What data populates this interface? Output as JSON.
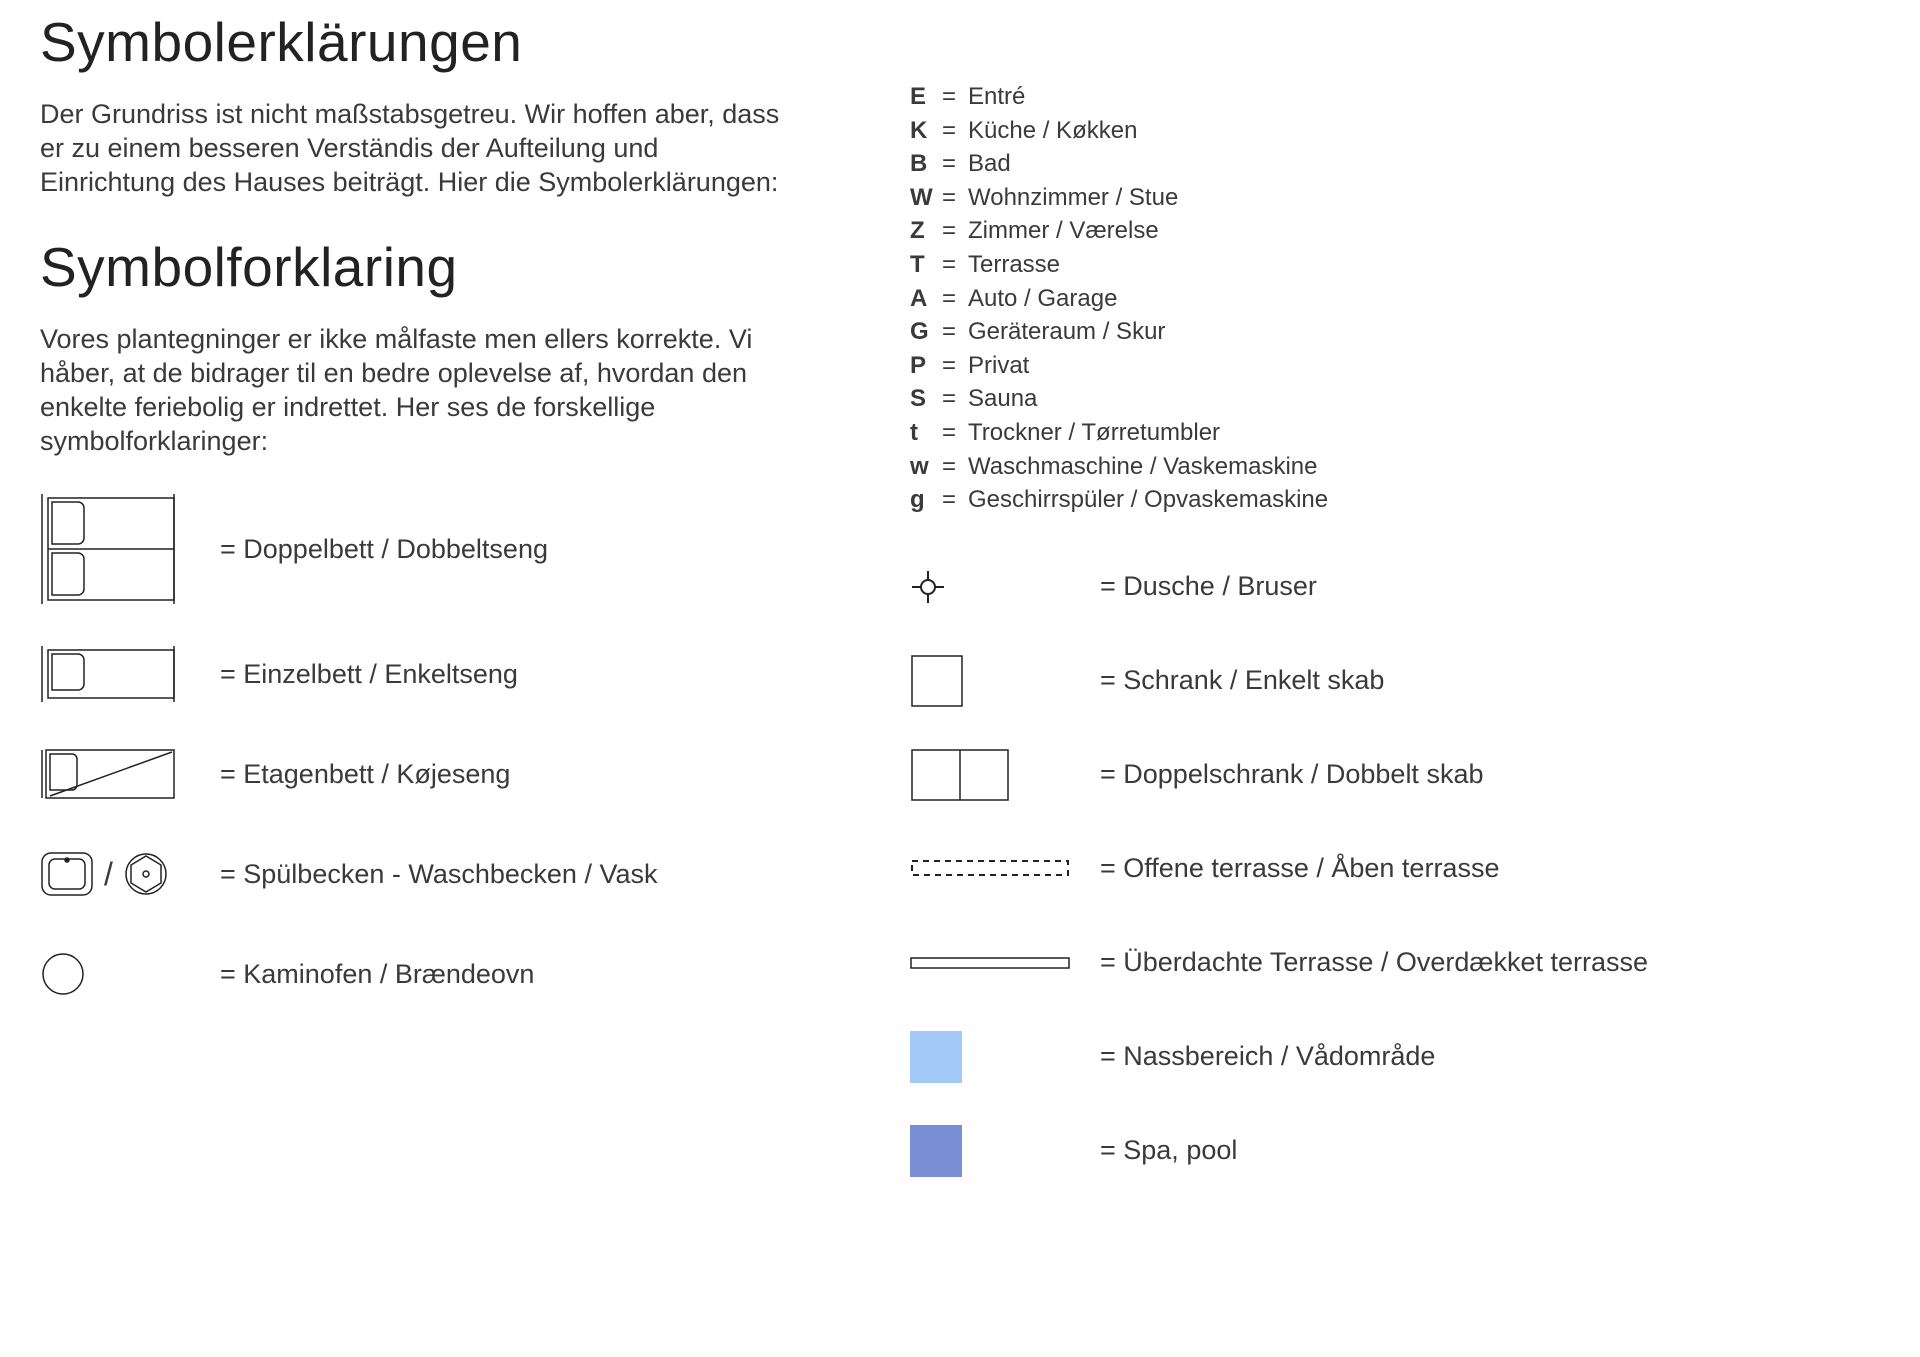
{
  "titles": {
    "de": "Symbolerklärungen",
    "da": "Symbolforklaring"
  },
  "subtitles": {
    "de": "Der Grundriss ist nicht maßstabsgetreu. Wir hoffen aber, dass er zu einem besseren Verständis der Aufteilung und Einrichtung des Hauses beiträgt. Hier die Symbolerklärungen:",
    "da": "Vores plantegninger er ikke målfaste men ellers korrekte. Vi håber, at de bidrager til en bedre oplevelse af, hvordan den enkelte feriebolig er indrettet. Her ses de forskellige symbolforklaringer:"
  },
  "left_items": {
    "double_bed": "= Doppelbett / Dobbeltseng",
    "single_bed": "= Einzelbett / Enkeltseng",
    "bunk_bed": "= Etagenbett / Køjeseng",
    "sink": "= Spülbecken - Waschbecken / Vask",
    "stove": "= Kaminofen / Brændeovn"
  },
  "letters": [
    {
      "k": "E",
      "v": "Entré"
    },
    {
      "k": "K",
      "v": "Küche / Køkken"
    },
    {
      "k": "B",
      "v": "Bad"
    },
    {
      "k": "W",
      "v": "Wohnzimmer / Stue"
    },
    {
      "k": "Z",
      "v": "Zimmer / Værelse"
    },
    {
      "k": "T",
      "v": "Terrasse"
    },
    {
      "k": "A",
      "v": "Auto / Garage"
    },
    {
      "k": "G",
      "v": "Geräteraum / Skur"
    },
    {
      "k": "P",
      "v": "Privat"
    },
    {
      "k": "S",
      "v": "Sauna"
    },
    {
      "k": "t",
      "v": "Trockner / Tørretumbler"
    },
    {
      "k": "w",
      "v": "Waschmaschine / Vaskemaskine"
    },
    {
      "k": "g",
      "v": "Geschirrspüler / Opvaskemaskine"
    }
  ],
  "right_items": {
    "shower": "= Dusche / Bruser",
    "closet": "= Schrank / Enkelt skab",
    "double_closet": "= Doppelschrank / Dobbelt skab",
    "open_terrace": "= Offene terrasse / Åben terrasse",
    "covered_terrace": "= Überdachte Terrasse / Overdækket terrasse",
    "wet_area": "= Nassbereich / Vådområde",
    "spa": "= Spa, pool"
  },
  "colors": {
    "stroke": "#222222",
    "wet": "#a3c9f7",
    "spa": "#7a8fd6"
  }
}
